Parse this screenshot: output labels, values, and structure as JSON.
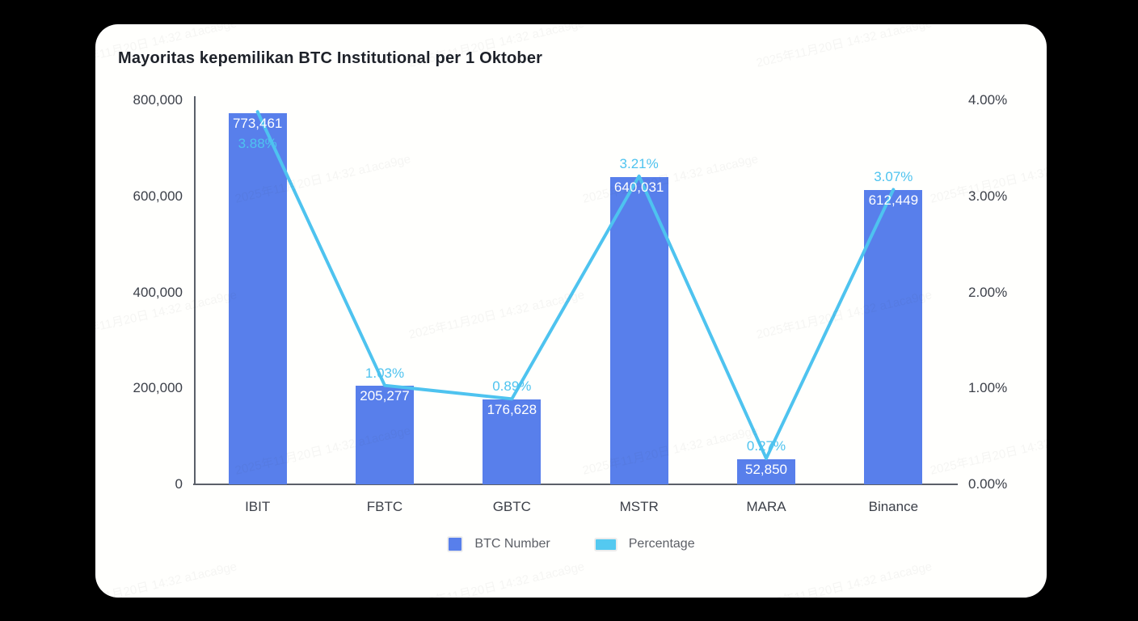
{
  "watermark": {
    "text": "2025年11月20日 14:32 a1aca9ge"
  },
  "chart_data": {
    "type": "bar+line",
    "title": "Mayoritas kepemilikan BTC Institutional per 1 Oktober",
    "categories": [
      "IBIT",
      "FBTC",
      "GBTC",
      "MSTR",
      "MARA",
      "Binance"
    ],
    "series": [
      {
        "name": "BTC Number",
        "type": "bar",
        "axis": "left",
        "color": "#587FEB",
        "values": [
          773461,
          205277,
          176628,
          640031,
          52850,
          612449
        ],
        "labels": [
          "773,461",
          "205,277",
          "176,628",
          "640,031",
          "52,850",
          "612,449"
        ]
      },
      {
        "name": "Percentage",
        "type": "line",
        "axis": "right",
        "color": "#4EC3EF",
        "values": [
          3.88,
          1.03,
          0.89,
          3.21,
          0.27,
          3.07
        ],
        "labels": [
          "3.88%",
          "1.03%",
          "0.89%",
          "3.21%",
          "0.27%",
          "3.07%"
        ]
      }
    ],
    "left_axis": {
      "min": 0,
      "max": 800000,
      "ticks": [
        "800,000",
        "600,000",
        "400,000",
        "200,000",
        "0"
      ]
    },
    "right_axis": {
      "min": 0,
      "max": 4,
      "ticks": [
        "4.00%",
        "3.00%",
        "2.00%",
        "1.00%",
        "0.00%"
      ]
    },
    "grid": false,
    "legend_position": "bottom"
  }
}
